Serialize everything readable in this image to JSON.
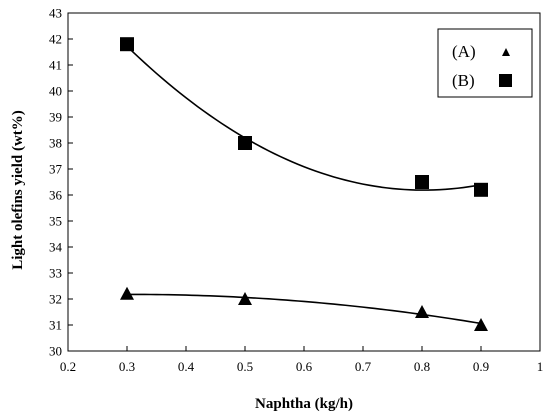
{
  "chart_data": {
    "type": "scatter",
    "xlabel": "Naphtha (kg/h)",
    "ylabel": "Light olefins yield (wt%)",
    "xlim": [
      0.2,
      1.0
    ],
    "ylim": [
      30,
      43
    ],
    "xticks": [
      0.2,
      0.3,
      0.4,
      0.5,
      0.6,
      0.7,
      0.8,
      0.9,
      1.0
    ],
    "xtick_labels": [
      "0.2",
      "0.3",
      "0.4",
      "0.5",
      "0.6",
      "0.7",
      "0.8",
      "0.9",
      "1"
    ],
    "yticks": [
      30,
      31,
      32,
      33,
      34,
      35,
      36,
      37,
      38,
      39,
      40,
      41,
      42,
      43
    ],
    "ytick_labels": [
      "30",
      "31",
      "32",
      "33",
      "34",
      "35",
      "36",
      "37",
      "38",
      "39",
      "40",
      "41",
      "42",
      "43"
    ],
    "grid": false,
    "legend_position": "top-right",
    "series": [
      {
        "name": "(A)",
        "marker": "triangle",
        "color": "#000000",
        "x": [
          0.3,
          0.5,
          0.8,
          0.9
        ],
        "y": [
          32.2,
          32.0,
          31.5,
          31.0
        ],
        "trend": "quadratic"
      },
      {
        "name": "(B)",
        "marker": "square",
        "color": "#000000",
        "x": [
          0.3,
          0.5,
          0.8,
          0.9
        ],
        "y": [
          41.8,
          38.0,
          36.5,
          36.2
        ],
        "trend": "quadratic"
      }
    ]
  }
}
